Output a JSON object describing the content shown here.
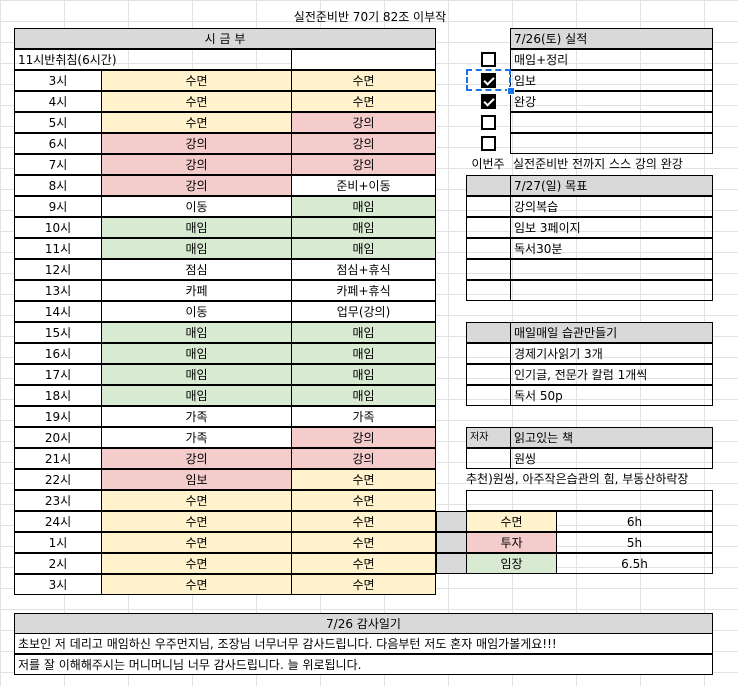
{
  "title": "실전준비반 70기 82조 이부작",
  "left": {
    "header": "시 금 부",
    "note": "11시반취침(6시간)",
    "rows": [
      {
        "time": "3시",
        "a": "수면",
        "ac": "y",
        "b": "수면",
        "bc": "y"
      },
      {
        "time": "4시",
        "a": "수면",
        "ac": "y",
        "b": "수면",
        "bc": "y"
      },
      {
        "time": "5시",
        "a": "수면",
        "ac": "y",
        "b": "강의",
        "bc": "r"
      },
      {
        "time": "6시",
        "a": "강의",
        "ac": "r",
        "b": "강의",
        "bc": "r"
      },
      {
        "time": "7시",
        "a": "강의",
        "ac": "r",
        "b": "강의",
        "bc": "r"
      },
      {
        "time": "8시",
        "a": "강의",
        "ac": "r",
        "b": "준비+이동",
        "bc": "w"
      },
      {
        "time": "9시",
        "a": "이동",
        "ac": "w",
        "b": "매임",
        "bc": "g"
      },
      {
        "time": "10시",
        "a": "매임",
        "ac": "g",
        "b": "매임",
        "bc": "g"
      },
      {
        "time": "11시",
        "a": "매임",
        "ac": "g",
        "b": "매임",
        "bc": "g"
      },
      {
        "time": "12시",
        "a": "점심",
        "ac": "w",
        "b": "점심+휴식",
        "bc": "w"
      },
      {
        "time": "13시",
        "a": "카페",
        "ac": "w",
        "b": "카페+휴식",
        "bc": "w"
      },
      {
        "time": "14시",
        "a": "이동",
        "ac": "w",
        "b": "업무(강의)",
        "bc": "w"
      },
      {
        "time": "15시",
        "a": "매임",
        "ac": "g",
        "b": "매임",
        "bc": "g"
      },
      {
        "time": "16시",
        "a": "매임",
        "ac": "g",
        "b": "매임",
        "bc": "g"
      },
      {
        "time": "17시",
        "a": "매임",
        "ac": "g",
        "b": "매임",
        "bc": "g"
      },
      {
        "time": "18시",
        "a": "매임",
        "ac": "g",
        "b": "매임",
        "bc": "g"
      },
      {
        "time": "19시",
        "a": "가족",
        "ac": "w",
        "b": "가족",
        "bc": "w"
      },
      {
        "time": "20시",
        "a": "가족",
        "ac": "w",
        "b": "강의",
        "bc": "r"
      },
      {
        "time": "21시",
        "a": "강의",
        "ac": "r",
        "b": "강의",
        "bc": "r"
      },
      {
        "time": "22시",
        "a": "임보",
        "ac": "r",
        "b": "수면",
        "bc": "y"
      },
      {
        "time": "23시",
        "a": "수면",
        "ac": "y",
        "b": "수면",
        "bc": "y"
      },
      {
        "time": "24시",
        "a": "수면",
        "ac": "y",
        "b": "수면",
        "bc": "y"
      },
      {
        "time": "1시",
        "a": "수면",
        "ac": "y",
        "b": "수면",
        "bc": "y"
      },
      {
        "time": "2시",
        "a": "수면",
        "ac": "y",
        "b": "수면",
        "bc": "y"
      },
      {
        "time": "3시",
        "a": "수면",
        "ac": "y",
        "b": "수면",
        "bc": "y"
      }
    ]
  },
  "right": {
    "result_header": "7/26(토) 실적",
    "result_items": [
      {
        "label": "매임+정리",
        "checked": false
      },
      {
        "label": "임보",
        "checked": true
      },
      {
        "label": "완강",
        "checked": true
      },
      {
        "label": "",
        "checked": false
      },
      {
        "label": "",
        "checked": false
      }
    ],
    "this_week_label": "이번주",
    "this_week_value": "실전준비반 전까지 스스 강의 완강",
    "goal_header": "7/27(일) 목표",
    "goal_items": [
      "강의복습",
      "임보 3페이지",
      "독서30분",
      "",
      ""
    ],
    "habit_header": "매일매일 습관만들기",
    "habit_items": [
      "경제기사읽기 3개",
      "인기글, 전문가 칼럼 1개씩",
      "독서 50p"
    ],
    "author_label": "저자",
    "book_header": "읽고있는 책",
    "book_value": "원씽",
    "recommend": "추천)원씽, 아주작은습관의 힘, 부동산하락장",
    "summary": [
      {
        "label": "수면",
        "value": "6h",
        "color": "y"
      },
      {
        "label": "투자",
        "value": "5h",
        "color": "r"
      },
      {
        "label": "임장",
        "value": "6.5h",
        "color": "g"
      }
    ]
  },
  "gratitude": {
    "header": "7/26 감사일기",
    "lines": [
      "초보인 저 데리고 매임하신 우주먼지님, 조장님 너무너무 감사드립니다. 다음부턴 저도 혼자 매임가볼게요!!!",
      "저를 잘 이해해주시는 머니머니님 너무 감사드립니다. 늘 위로됩니다."
    ]
  },
  "colors": {
    "yellow": "#fff2cc",
    "red": "#f4cccc",
    "green": "#d9ead3",
    "gray": "#d9d9d9",
    "selection": "#1a73e8"
  }
}
